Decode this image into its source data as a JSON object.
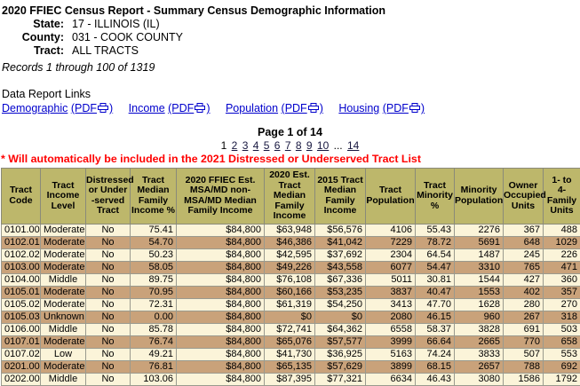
{
  "header": {
    "title": "2020 FFIEC Census Report - Summary Census Demographic Information",
    "state_label": "State:",
    "state_value": "17 - ILLINOIS (IL)",
    "county_label": "County:",
    "county_value": "031 - COOK COUNTY",
    "tract_label": "Tract:",
    "tract_value": "ALL TRACTS",
    "records_line": "Records 1 through 100 of 1319"
  },
  "links": {
    "heading": "Data Report Links",
    "pdf_open": "(PDF",
    "pdf_close": ")",
    "printer_icon": "printer-icon",
    "items": [
      {
        "label": "Demographic"
      },
      {
        "label": "Income"
      },
      {
        "label": "Population"
      },
      {
        "label": "Housing"
      }
    ]
  },
  "pagination": {
    "label": "Page 1 of 14",
    "items": [
      {
        "label": "1",
        "current": true
      },
      {
        "label": "2"
      },
      {
        "label": "3"
      },
      {
        "label": "4"
      },
      {
        "label": "5"
      },
      {
        "label": "6"
      },
      {
        "label": "7"
      },
      {
        "label": "8"
      },
      {
        "label": "9"
      },
      {
        "label": "10"
      },
      {
        "label": "...",
        "plain": true
      },
      {
        "label": "14"
      }
    ]
  },
  "notice": "* Will automatically be included in the 2021 Distressed or Underserved Tract List",
  "table": {
    "columns": [
      {
        "label": "Tract\nCode",
        "align": "left"
      },
      {
        "label": "Tract\nIncome\nLevel",
        "align": "center"
      },
      {
        "label": "Distressed\nor Under\n-served\nTract",
        "align": "center"
      },
      {
        "label": "Tract\nMedian\nFamily\nIncome %",
        "align": "right"
      },
      {
        "label": "2020 FFIEC Est.\nMSA/MD non-\nMSA/MD Median\nFamily Income",
        "align": "right"
      },
      {
        "label": "2020 Est.\nTract\nMedian\nFamily\nIncome",
        "align": "right"
      },
      {
        "label": "2015 Tract\nMedian\nFamily\nIncome",
        "align": "right"
      },
      {
        "label": "Tract\nPopulation",
        "align": "right"
      },
      {
        "label": "Tract\nMinority\n%",
        "align": "right"
      },
      {
        "label": "Minority\nPopulation",
        "align": "right"
      },
      {
        "label": "Owner\nOccupied\nUnits",
        "align": "right"
      },
      {
        "label": "1- to\n4-\nFamily\nUnits",
        "align": "right"
      }
    ],
    "rows": [
      [
        "0101.00",
        "Moderate",
        "No",
        "75.41",
        "$84,800",
        "$63,948",
        "$56,576",
        "4106",
        "55.43",
        "2276",
        "367",
        "488"
      ],
      [
        "0102.01",
        "Moderate",
        "No",
        "54.70",
        "$84,800",
        "$46,386",
        "$41,042",
        "7229",
        "78.72",
        "5691",
        "648",
        "1029"
      ],
      [
        "0102.02",
        "Moderate",
        "No",
        "50.23",
        "$84,800",
        "$42,595",
        "$37,692",
        "2304",
        "64.54",
        "1487",
        "245",
        "226"
      ],
      [
        "0103.00",
        "Moderate",
        "No",
        "58.05",
        "$84,800",
        "$49,226",
        "$43,558",
        "6077",
        "54.47",
        "3310",
        "765",
        "471"
      ],
      [
        "0104.00",
        "Middle",
        "No",
        "89.75",
        "$84,800",
        "$76,108",
        "$67,336",
        "5011",
        "30.81",
        "1544",
        "427",
        "360"
      ],
      [
        "0105.01",
        "Moderate",
        "No",
        "70.95",
        "$84,800",
        "$60,166",
        "$53,235",
        "3837",
        "40.47",
        "1553",
        "402",
        "357"
      ],
      [
        "0105.02",
        "Moderate",
        "No",
        "72.31",
        "$84,800",
        "$61,319",
        "$54,250",
        "3413",
        "47.70",
        "1628",
        "280",
        "270"
      ],
      [
        "0105.03",
        "Unknown",
        "No",
        "0.00",
        "$84,800",
        "$0",
        "$0",
        "2080",
        "46.15",
        "960",
        "267",
        "318"
      ],
      [
        "0106.00",
        "Middle",
        "No",
        "85.78",
        "$84,800",
        "$72,741",
        "$64,362",
        "6558",
        "58.37",
        "3828",
        "691",
        "503"
      ],
      [
        "0107.01",
        "Moderate",
        "No",
        "76.74",
        "$84,800",
        "$65,076",
        "$57,577",
        "3999",
        "66.64",
        "2665",
        "770",
        "658"
      ],
      [
        "0107.02",
        "Low",
        "No",
        "49.21",
        "$84,800",
        "$41,730",
        "$36,925",
        "5163",
        "74.24",
        "3833",
        "507",
        "553"
      ],
      [
        "0201.00",
        "Moderate",
        "No",
        "76.81",
        "$84,800",
        "$65,135",
        "$57,629",
        "3899",
        "68.15",
        "2657",
        "788",
        "692"
      ],
      [
        "0202.00",
        "Middle",
        "No",
        "103.06",
        "$84,800",
        "$87,395",
        "$77,321",
        "6634",
        "46.43",
        "3080",
        "1586",
        "1792"
      ]
    ]
  },
  "colors": {
    "table_header_bg": "#BDB76B",
    "row_light": "#FBF4D9",
    "row_dark": "#C9A27A",
    "link": "#0000CC",
    "notice": "#FF0000"
  }
}
